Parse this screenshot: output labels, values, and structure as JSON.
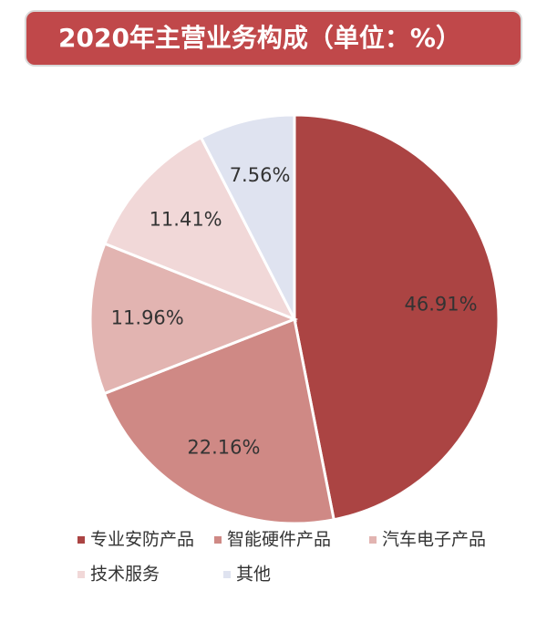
{
  "chart_data": {
    "type": "pie",
    "title": "2020年主营业务构成（单位：%）",
    "categories": [
      "专业安防产品",
      "智能硬件产品",
      "汽车电子产品",
      "技术服务",
      "其他"
    ],
    "values": [
      46.91,
      22.16,
      11.96,
      11.41,
      7.56
    ],
    "value_labels": [
      "46.91%",
      "22.16%",
      "11.96%",
      "11.41%",
      "7.56%"
    ],
    "colors": [
      "#ab4443",
      "#cf8985",
      "#e2b4b1",
      "#f1d8d8",
      "#dfe3f0"
    ]
  }
}
